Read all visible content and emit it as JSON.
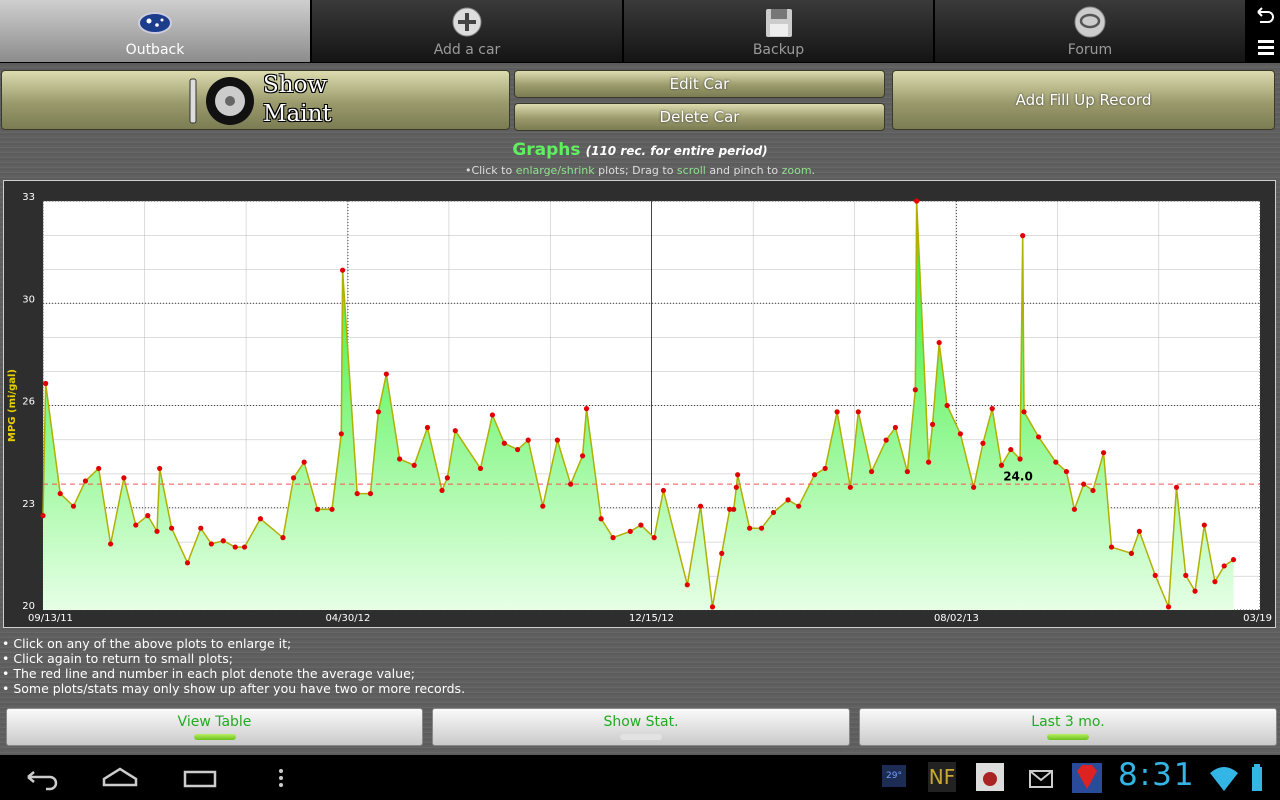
{
  "tabs": [
    {
      "label": "Outback",
      "selected": true
    },
    {
      "label": "Add a car",
      "selected": false
    },
    {
      "label": "Backup",
      "selected": false
    },
    {
      "label": "Forum",
      "selected": false
    }
  ],
  "buttons": {
    "show_maint": [
      "Show",
      "Maint"
    ],
    "edit_car": "Edit Car",
    "delete_car": "Delete Car",
    "add_fill_up": "Add Fill Up Record"
  },
  "graphs_header": {
    "title": "Graphs",
    "subtitle": "(110 rec. for entire period)"
  },
  "hint": [
    "•Click to ",
    "enlarge/shrink",
    " plots; Drag to ",
    "scroll",
    " and pinch to ",
    "zoom",
    "."
  ],
  "chart_data": {
    "type": "area",
    "ylabel": "MPG (mi/gal)",
    "x": [
      "2011-09-13",
      "2011-09-15",
      "2011-09-26",
      "2011-10-06",
      "2011-10-15",
      "2011-10-25",
      "2011-11-03",
      "2011-11-13",
      "2011-11-22",
      "2011-12-01",
      "2011-12-08",
      "2011-12-10",
      "2011-12-19",
      "2011-12-31",
      "2012-01-10",
      "2012-01-18",
      "2012-01-27",
      "2012-02-05",
      "2012-02-12",
      "2012-02-24",
      "2012-03-12",
      "2012-03-20",
      "2012-03-28",
      "2012-04-07",
      "2012-04-18",
      "2012-04-25",
      "2012-04-26",
      "2012-05-07",
      "2012-05-17",
      "2012-05-23",
      "2012-05-29",
      "2012-06-08",
      "2012-06-19",
      "2012-06-29",
      "2012-07-10",
      "2012-07-14",
      "2012-07-20",
      "2012-08-08",
      "2012-08-17",
      "2012-08-26",
      "2012-09-05",
      "2012-09-13",
      "2012-09-24",
      "2012-10-05",
      "2012-10-15",
      "2012-10-24",
      "2012-10-27",
      "2012-11-07",
      "2012-11-16",
      "2012-11-29",
      "2012-12-07",
      "2012-12-17",
      "2012-12-24",
      "2013-01-11",
      "2013-01-21",
      "2013-01-30",
      "2013-02-06",
      "2013-02-12",
      "2013-02-15",
      "2013-02-17",
      "2013-02-18",
      "2013-02-27",
      "2013-03-08",
      "2013-03-17",
      "2013-03-28",
      "2013-04-05",
      "2013-04-17",
      "2013-04-25",
      "2013-05-04",
      "2013-05-14",
      "2013-05-20",
      "2013-05-30",
      "2013-06-10",
      "2013-06-17",
      "2013-06-26",
      "2013-07-02",
      "2013-07-03",
      "2013-07-12",
      "2013-07-15",
      "2013-07-20",
      "2013-07-26",
      "2013-08-05",
      "2013-08-15",
      "2013-08-22",
      "2013-08-29",
      "2013-09-05",
      "2013-09-12",
      "2013-09-19",
      "2013-09-21",
      "2013-09-22",
      "2013-10-03",
      "2013-10-16",
      "2013-10-24",
      "2013-10-30",
      "2013-11-06",
      "2013-11-13",
      "2013-11-21",
      "2013-11-27",
      "2013-12-12",
      "2013-12-18",
      "2013-12-30",
      "2014-01-09",
      "2014-01-15",
      "2014-01-22",
      "2014-01-29",
      "2014-02-05",
      "2014-02-13",
      "2014-02-20",
      "2014-02-27"
    ],
    "values": [
      23.0,
      27.2,
      23.7,
      23.3,
      24.1,
      24.5,
      22.1,
      24.2,
      22.7,
      23.0,
      22.5,
      24.5,
      22.6,
      21.5,
      22.6,
      22.1,
      22.2,
      22.0,
      22.0,
      22.9,
      22.3,
      24.2,
      24.7,
      23.2,
      23.2,
      25.6,
      30.8,
      23.7,
      23.7,
      26.3,
      27.5,
      24.8,
      24.6,
      25.8,
      23.8,
      24.2,
      25.7,
      24.5,
      26.2,
      25.3,
      25.1,
      25.4,
      23.3,
      25.4,
      24.0,
      24.9,
      26.4,
      22.9,
      22.3,
      22.5,
      22.7,
      22.3,
      23.8,
      20.8,
      23.3,
      20.1,
      21.8,
      23.2,
      23.2,
      23.9,
      24.3,
      22.6,
      22.6,
      23.1,
      23.5,
      23.3,
      24.3,
      24.5,
      26.3,
      23.9,
      26.3,
      24.4,
      25.4,
      25.8,
      24.4,
      27.0,
      33.0,
      24.7,
      25.9,
      28.5,
      26.5,
      25.6,
      23.9,
      25.3,
      26.4,
      24.6,
      25.1,
      24.8,
      31.9,
      26.3,
      25.5,
      24.7,
      24.4,
      23.2,
      24.0,
      23.8,
      25.0,
      22.0,
      21.8,
      22.5,
      21.1,
      20.1,
      23.9,
      21.1,
      20.6,
      22.7,
      20.9,
      21.4,
      21.6
    ],
    "color": "#b0b000",
    "marker_color": "#e00000",
    "fill_color": "#22ee22",
    "average": 24.0,
    "average_label": "24.0",
    "average_color": "#ff5050",
    "xlim": [
      "2011-09-13",
      "2014-03-19"
    ],
    "xticks": [
      {
        "value": "2011-09-13",
        "label": "09/13/11"
      },
      {
        "value": "2012-04-30",
        "label": "04/30/12"
      },
      {
        "value": "2012-12-15",
        "label": "12/15/12"
      },
      {
        "value": "2013-08-02",
        "label": "08/02/13"
      },
      {
        "value": "2014-03-19",
        "label": "03/19"
      }
    ],
    "ylim": [
      20,
      33
    ],
    "yticks": [
      20,
      {
        "value": 23.25,
        "label": "23"
      },
      {
        "value": 26.5,
        "label": "26"
      },
      {
        "value": 29.75,
        "label": "30"
      },
      33
    ],
    "grid": true
  },
  "notes": [
    "• Click on any of the above plots to enlarge it;",
    "• Click again to return to small plots;",
    "• The red line and number in each plot denote the average value;",
    "• Some plots/stats may only show up after you have two or more records."
  ],
  "bottom_buttons": [
    {
      "label": "View Table",
      "active": true
    },
    {
      "label": "Show Stat.",
      "active": false
    },
    {
      "label": "Last 3 mo.",
      "active": true
    }
  ],
  "status_bar": {
    "temperature": "29°",
    "nf": "NF",
    "time": "8:31"
  }
}
